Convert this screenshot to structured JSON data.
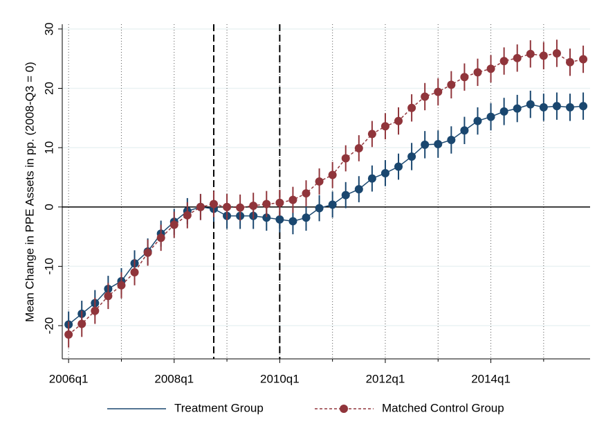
{
  "chart_data": {
    "type": "line",
    "ylabel": "Mean Change in PPE Assets in pp. (2008-Q3 = 0)",
    "x": [
      2006,
      2006.25,
      2006.5,
      2006.75,
      2007,
      2007.25,
      2007.5,
      2007.75,
      2008,
      2008.25,
      2008.5,
      2008.75,
      2009,
      2009.25,
      2009.5,
      2009.75,
      2010,
      2010.25,
      2010.5,
      2010.75,
      2011,
      2011.25,
      2011.5,
      2011.75,
      2012,
      2012.25,
      2012.5,
      2012.75,
      2013,
      2013.25,
      2013.5,
      2013.75,
      2014,
      2014.25,
      2014.5,
      2014.75,
      2015,
      2015.25,
      2015.5,
      2015.75
    ],
    "series": [
      {
        "name": "Treatment Group",
        "color": "#1a476f",
        "line_style": "solid",
        "values": [
          -19.8,
          -18.0,
          -16.2,
          -13.8,
          -12.5,
          -9.5,
          -7.5,
          -4.5,
          -2.5,
          -0.7,
          0,
          -0.3,
          -1.5,
          -1.5,
          -1.5,
          -1.8,
          -2.1,
          -2.4,
          -1.8,
          -0.2,
          0.4,
          2.0,
          3.0,
          4.8,
          5.7,
          6.8,
          8.5,
          10.5,
          10.6,
          11.3,
          12.9,
          14.5,
          15.2,
          16.1,
          16.6,
          17.3,
          16.8,
          17.0,
          16.8,
          17.0
        ],
        "errors": [
          2.2,
          2.2,
          2.2,
          2.2,
          2.2,
          2.2,
          2.2,
          2.2,
          2.2,
          2.2,
          2.2,
          2.2,
          2.2,
          2.2,
          2.2,
          2.2,
          2.2,
          2.2,
          2.2,
          2.2,
          2.2,
          2.2,
          2.2,
          2.2,
          2.2,
          2.2,
          2.3,
          2.3,
          2.3,
          2.3,
          2.3,
          2.3,
          2.3,
          2.3,
          2.3,
          2.3,
          2.3,
          2.3,
          2.3,
          2.3
        ]
      },
      {
        "name": "Matched Control Group",
        "color": "#90353b",
        "line_style": "dashed",
        "values": [
          -21.5,
          -19.7,
          -17.5,
          -15.0,
          -13.2,
          -11.0,
          -7.7,
          -5.2,
          -3.0,
          -1.4,
          0,
          0.5,
          0.0,
          -0.1,
          0.2,
          0.5,
          0.7,
          1.2,
          2.3,
          4.3,
          5.4,
          8.2,
          9.9,
          12.3,
          13.6,
          14.5,
          16.7,
          18.6,
          19.4,
          20.6,
          21.9,
          22.7,
          23.3,
          24.6,
          25.1,
          25.8,
          25.5,
          25.9,
          24.4,
          24.9
        ],
        "errors": [
          2.2,
          2.2,
          2.2,
          2.2,
          2.2,
          2.2,
          2.2,
          2.2,
          2.2,
          2.2,
          2.2,
          2.2,
          2.2,
          2.2,
          2.2,
          2.2,
          2.2,
          2.2,
          2.2,
          2.2,
          2.2,
          2.2,
          2.2,
          2.2,
          2.2,
          2.3,
          2.3,
          2.3,
          2.3,
          2.3,
          2.3,
          2.3,
          2.3,
          2.3,
          2.3,
          2.3,
          2.3,
          2.3,
          2.3,
          2.3
        ]
      }
    ],
    "xlim": [
      2005.88,
      2015.88
    ],
    "xticks": [
      {
        "value": 2006,
        "label": "2006q1"
      },
      {
        "value": 2008,
        "label": "2008q1"
      },
      {
        "value": 2010,
        "label": "2010q1"
      },
      {
        "value": 2012,
        "label": "2012q1"
      },
      {
        "value": 2014,
        "label": "2014q1"
      }
    ],
    "xminor": [
      2007,
      2009,
      2011,
      2013,
      2015
    ],
    "vlines": [
      2008.75,
      2010
    ],
    "hline": 0,
    "ylim": [
      -25.6,
      30.8
    ],
    "yticks": [
      -20,
      -10,
      0,
      10,
      20,
      30
    ],
    "grid": true,
    "legend": "bottom"
  }
}
